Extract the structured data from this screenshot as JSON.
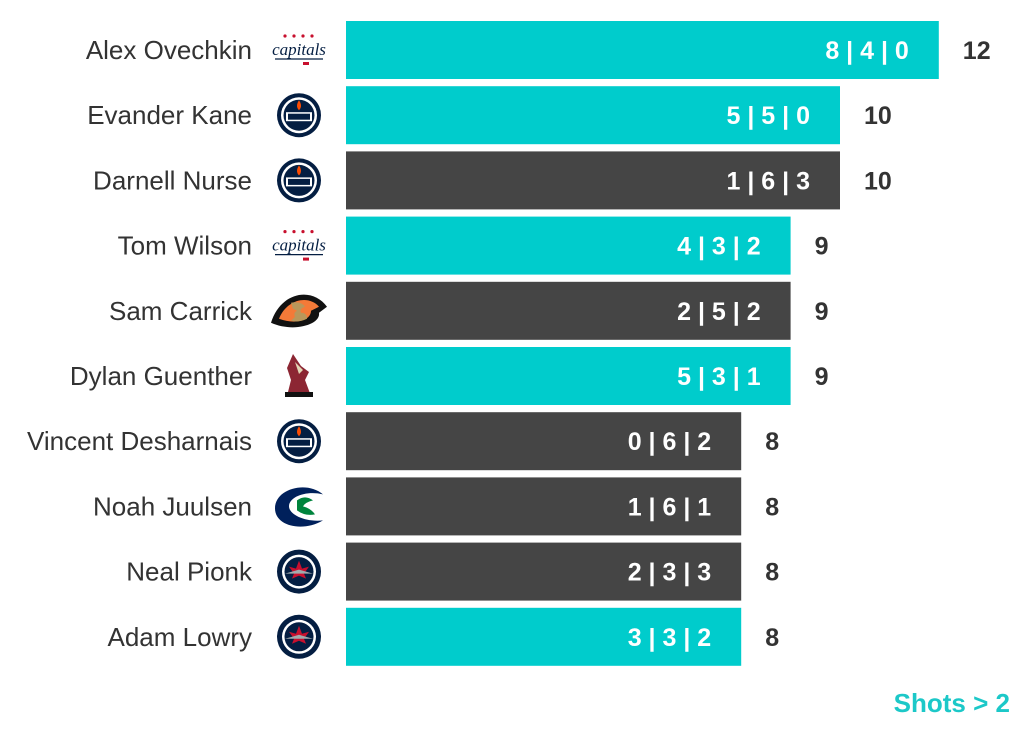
{
  "colors": {
    "highlight": "#00cccc",
    "default": "#454545",
    "name_text": "#333333",
    "total_text": "#333333",
    "footnote": "#1cc8c8"
  },
  "footnote": "Shots > 2",
  "chart_data": {
    "type": "bar",
    "orientation": "horizontal",
    "title": "",
    "xlabel": "",
    "ylabel": "",
    "xlim": [
      0,
      12
    ],
    "grid": false,
    "categories": [
      "Alex Ovechkin",
      "Evander Kane",
      "Darnell Nurse",
      "Tom Wilson",
      "Sam Carrick",
      "Dylan Guenther",
      "Vincent Desharnais",
      "Noah Juulsen",
      "Neal Pionk",
      "Adam Lowry"
    ],
    "values": [
      12,
      10,
      10,
      9,
      9,
      9,
      8,
      8,
      8,
      8
    ],
    "bar_labels": [
      "8 | 4 | 0",
      "5 | 5 | 0",
      "1 | 6 | 3",
      "4 | 3 | 2",
      "2 | 5 | 2",
      "5 | 3 | 1",
      "0 | 6 | 2",
      "1 | 6 | 1",
      "2 | 3 | 3",
      "3 | 3 | 2"
    ],
    "highlighted": [
      true,
      true,
      false,
      true,
      false,
      true,
      false,
      false,
      false,
      true
    ],
    "team_logos": [
      "capitals-logo-icon",
      "oilers-logo-icon",
      "oilers-logo-icon",
      "capitals-logo-icon",
      "ducks-logo-icon",
      "coyotes-logo-icon",
      "oilers-logo-icon",
      "canucks-logo-icon",
      "jets-logo-icon",
      "jets-logo-icon"
    ]
  }
}
